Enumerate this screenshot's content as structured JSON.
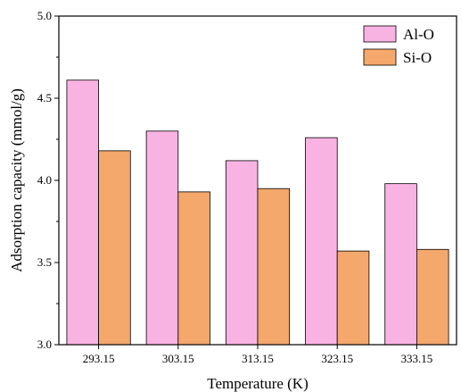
{
  "chart_data": {
    "type": "bar",
    "title": "",
    "xlabel": "Temperature (K)",
    "ylabel": "Adsorption capacity (mmol/g)",
    "categories": [
      "293.15",
      "303.15",
      "313.15",
      "323.15",
      "333.15"
    ],
    "series": [
      {
        "name": "Al-O",
        "values": [
          4.61,
          4.3,
          4.12,
          4.26,
          3.98
        ],
        "color": "#F9B3E3"
      },
      {
        "name": "Si-O",
        "values": [
          4.18,
          3.93,
          3.95,
          3.57,
          3.58
        ],
        "color": "#F4A86C"
      }
    ],
    "ylim": [
      3.0,
      5.0
    ],
    "yticks": [
      "3.0",
      "3.5",
      "4.0",
      "4.5",
      "5.0"
    ],
    "grid": false,
    "legend_position": "top-right"
  }
}
